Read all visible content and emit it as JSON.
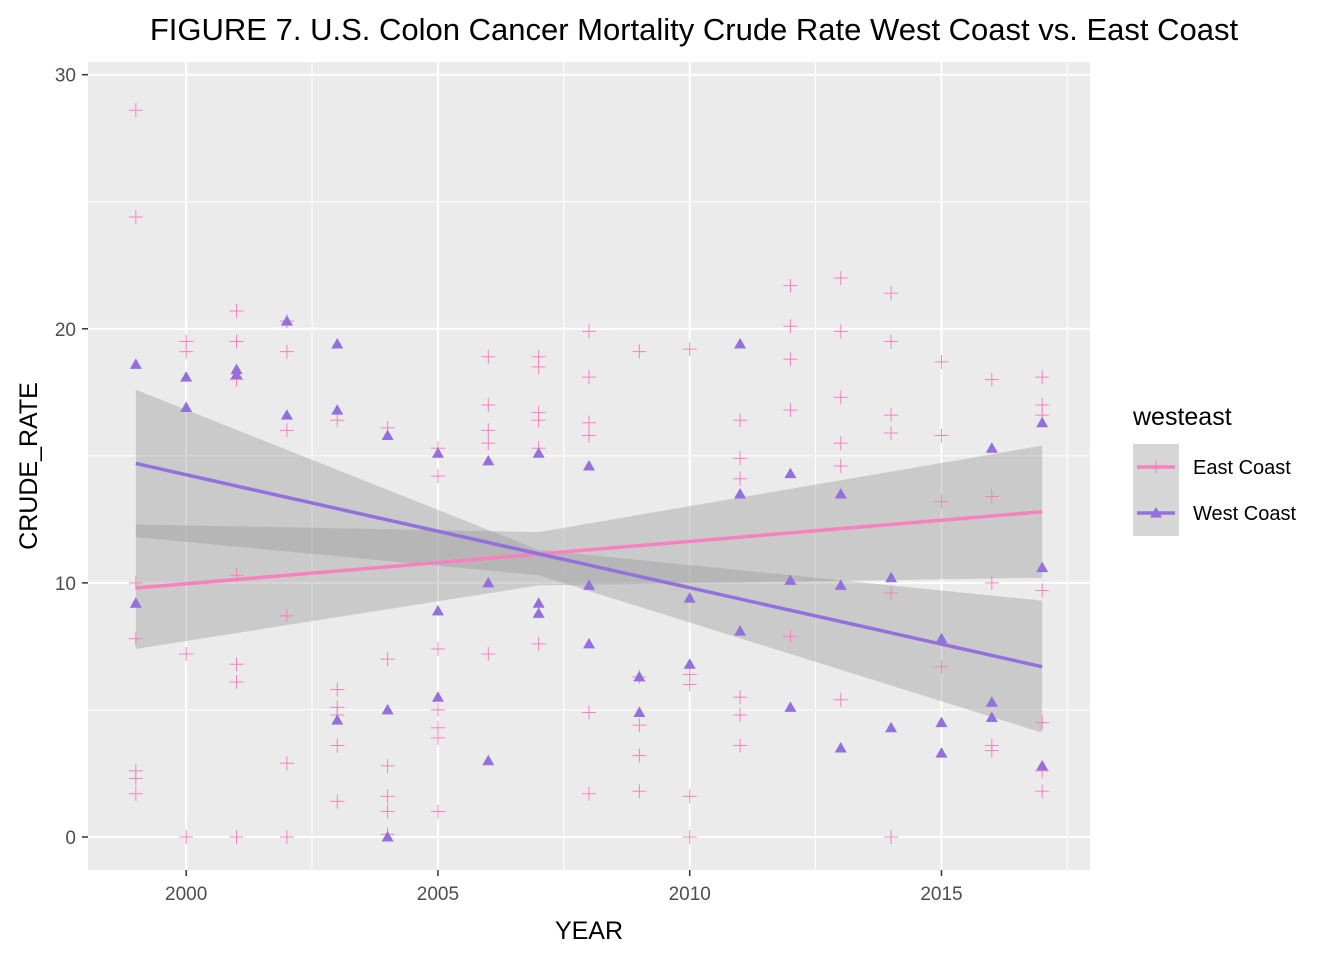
{
  "chart_data": {
    "type": "scatter",
    "title": "FIGURE 7. U.S. Colon Cancer Mortality Crude Rate West Coast vs. East Coast",
    "xlabel": "YEAR",
    "ylabel": "CRUDE_RATE",
    "xlim": [
      1998.05,
      2017.95
    ],
    "ylim": [
      -1.3,
      30.5
    ],
    "x_ticks": [
      2000,
      2005,
      2010,
      2015
    ],
    "y_ticks": [
      0,
      10,
      20,
      30
    ],
    "grid": true,
    "legend": {
      "title": "westeast",
      "placement": "right",
      "entries": [
        "East Coast",
        "West Coast"
      ]
    },
    "series": [
      {
        "name": "East Coast",
        "marker": "plus",
        "color": "#f781bf",
        "points": [
          [
            1999,
            28.6
          ],
          [
            1999,
            24.4
          ],
          [
            1999,
            10.0
          ],
          [
            1999,
            7.8
          ],
          [
            1999,
            2.6
          ],
          [
            1999,
            2.3
          ],
          [
            1999,
            1.7
          ],
          [
            2000,
            19.5
          ],
          [
            2000,
            19.1
          ],
          [
            2000,
            7.2
          ],
          [
            2000,
            0.0
          ],
          [
            2001,
            20.7
          ],
          [
            2001,
            19.5
          ],
          [
            2001,
            18.0
          ],
          [
            2001,
            10.3
          ],
          [
            2001,
            6.8
          ],
          [
            2001,
            6.1
          ],
          [
            2001,
            0.0
          ],
          [
            2002,
            20.3
          ],
          [
            2002,
            19.1
          ],
          [
            2002,
            16.0
          ],
          [
            2002,
            8.7
          ],
          [
            2002,
            2.9
          ],
          [
            2002,
            0.0
          ],
          [
            2003,
            16.4
          ],
          [
            2003,
            5.8
          ],
          [
            2003,
            5.1
          ],
          [
            2003,
            4.8
          ],
          [
            2003,
            3.6
          ],
          [
            2003,
            1.4
          ],
          [
            2004,
            16.1
          ],
          [
            2004,
            7.0
          ],
          [
            2004,
            2.8
          ],
          [
            2004,
            1.6
          ],
          [
            2004,
            1.0
          ],
          [
            2004,
            0.1
          ],
          [
            2005,
            15.3
          ],
          [
            2005,
            14.2
          ],
          [
            2005,
            7.4
          ],
          [
            2005,
            5.0
          ],
          [
            2005,
            4.3
          ],
          [
            2005,
            3.9
          ],
          [
            2005,
            1.0
          ],
          [
            2006,
            18.9
          ],
          [
            2006,
            17.0
          ],
          [
            2006,
            16.0
          ],
          [
            2006,
            15.5
          ],
          [
            2006,
            7.2
          ],
          [
            2007,
            18.9
          ],
          [
            2007,
            18.5
          ],
          [
            2007,
            16.7
          ],
          [
            2007,
            16.4
          ],
          [
            2007,
            15.3
          ],
          [
            2007,
            7.6
          ],
          [
            2008,
            19.9
          ],
          [
            2008,
            18.1
          ],
          [
            2008,
            16.3
          ],
          [
            2008,
            15.8
          ],
          [
            2008,
            4.9
          ],
          [
            2008,
            1.7
          ],
          [
            2009,
            19.1
          ],
          [
            2009,
            6.3
          ],
          [
            2009,
            4.4
          ],
          [
            2009,
            3.2
          ],
          [
            2009,
            1.8
          ],
          [
            2010,
            19.2
          ],
          [
            2010,
            6.4
          ],
          [
            2010,
            6.0
          ],
          [
            2010,
            1.6
          ],
          [
            2010,
            0.0
          ],
          [
            2011,
            16.4
          ],
          [
            2011,
            14.9
          ],
          [
            2011,
            14.1
          ],
          [
            2011,
            5.5
          ],
          [
            2011,
            4.8
          ],
          [
            2011,
            3.6
          ],
          [
            2012,
            21.7
          ],
          [
            2012,
            20.1
          ],
          [
            2012,
            18.8
          ],
          [
            2012,
            16.8
          ],
          [
            2012,
            7.9
          ],
          [
            2013,
            22.0
          ],
          [
            2013,
            19.9
          ],
          [
            2013,
            17.3
          ],
          [
            2013,
            15.5
          ],
          [
            2013,
            14.6
          ],
          [
            2013,
            5.4
          ],
          [
            2014,
            21.4
          ],
          [
            2014,
            19.5
          ],
          [
            2014,
            16.6
          ],
          [
            2014,
            15.9
          ],
          [
            2014,
            9.6
          ],
          [
            2014,
            0.0
          ],
          [
            2015,
            18.7
          ],
          [
            2015,
            15.8
          ],
          [
            2015,
            13.2
          ],
          [
            2015,
            6.7
          ],
          [
            2016,
            18.0
          ],
          [
            2016,
            13.4
          ],
          [
            2016,
            10.0
          ],
          [
            2016,
            3.6
          ],
          [
            2016,
            3.4
          ],
          [
            2017,
            18.1
          ],
          [
            2017,
            17.0
          ],
          [
            2017,
            16.6
          ],
          [
            2017,
            9.7
          ],
          [
            2017,
            4.5
          ],
          [
            2017,
            2.6
          ],
          [
            2017,
            1.8
          ]
        ],
        "trend": {
          "x": [
            1999,
            2017
          ],
          "y": [
            9.8,
            12.8
          ]
        },
        "band": {
          "x": [
            1999,
            2007,
            2017
          ],
          "upper": [
            12.3,
            12.0,
            15.4
          ],
          "lower": [
            7.4,
            9.9,
            10.2
          ]
        }
      },
      {
        "name": "West Coast",
        "marker": "triangle",
        "color": "#9370db",
        "points": [
          [
            1999,
            18.6
          ],
          [
            1999,
            9.2
          ],
          [
            2000,
            18.1
          ],
          [
            2000,
            16.9
          ],
          [
            2001,
            18.4
          ],
          [
            2001,
            18.2
          ],
          [
            2002,
            20.3
          ],
          [
            2002,
            16.6
          ],
          [
            2003,
            19.4
          ],
          [
            2003,
            16.8
          ],
          [
            2003,
            4.6
          ],
          [
            2004,
            15.8
          ],
          [
            2004,
            5.0
          ],
          [
            2004,
            0.0
          ],
          [
            2005,
            15.1
          ],
          [
            2005,
            8.9
          ],
          [
            2005,
            5.5
          ],
          [
            2006,
            14.8
          ],
          [
            2006,
            10.0
          ],
          [
            2006,
            3.0
          ],
          [
            2007,
            15.1
          ],
          [
            2007,
            9.2
          ],
          [
            2007,
            8.8
          ],
          [
            2008,
            14.6
          ],
          [
            2008,
            9.9
          ],
          [
            2008,
            7.6
          ],
          [
            2009,
            6.3
          ],
          [
            2009,
            4.9
          ],
          [
            2010,
            9.4
          ],
          [
            2010,
            6.8
          ],
          [
            2011,
            19.4
          ],
          [
            2011,
            13.5
          ],
          [
            2011,
            8.1
          ],
          [
            2012,
            14.3
          ],
          [
            2012,
            10.1
          ],
          [
            2012,
            5.1
          ],
          [
            2013,
            13.5
          ],
          [
            2013,
            9.9
          ],
          [
            2013,
            3.5
          ],
          [
            2014,
            10.2
          ],
          [
            2014,
            4.3
          ],
          [
            2015,
            7.8
          ],
          [
            2015,
            4.5
          ],
          [
            2015,
            3.3
          ],
          [
            2016,
            15.3
          ],
          [
            2016,
            5.3
          ],
          [
            2016,
            4.7
          ],
          [
            2017,
            16.3
          ],
          [
            2017,
            10.6
          ],
          [
            2017,
            2.8
          ]
        ],
        "trend": {
          "x": [
            1999,
            2017
          ],
          "y": [
            14.7,
            6.7
          ]
        },
        "band": {
          "x": [
            1999,
            2007,
            2017
          ],
          "upper": [
            17.6,
            11.3,
            9.3
          ],
          "lower": [
            11.8,
            10.3,
            4.1
          ]
        }
      }
    ]
  }
}
